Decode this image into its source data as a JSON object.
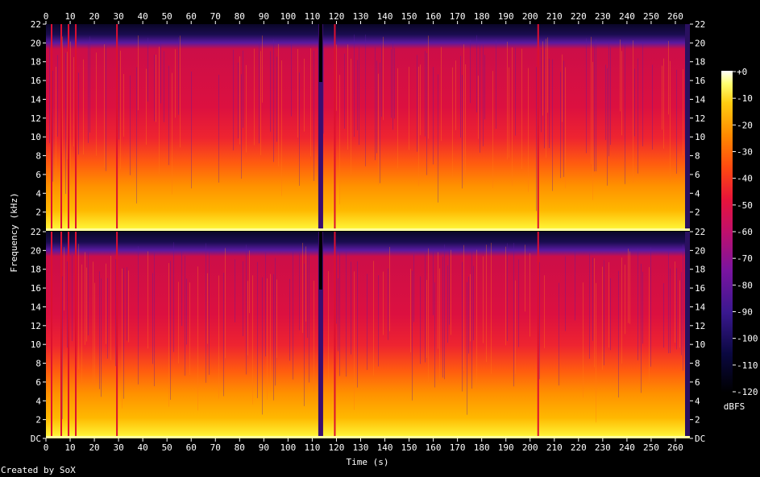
{
  "chart_data": {
    "type": "heatmap",
    "x_axis_title": "Time (s)",
    "y_axis_title": "Frequency (kHz)",
    "x_ticks": [
      0,
      10,
      20,
      30,
      40,
      50,
      60,
      70,
      80,
      90,
      100,
      110,
      120,
      130,
      140,
      150,
      160,
      170,
      180,
      190,
      200,
      210,
      220,
      230,
      240,
      250,
      260
    ],
    "x_range": [
      0,
      266
    ],
    "y_ticks": [
      "DC",
      "2",
      "4",
      "6",
      "8",
      "10",
      "12",
      "14",
      "16",
      "18",
      "20",
      "22"
    ],
    "y_range_khz": [
      0,
      22
    ],
    "channels": 2,
    "colorbar": {
      "label": "dBFS",
      "ticks": [
        "+0",
        "-10",
        "-20",
        "-30",
        "-40",
        "-50",
        "-60",
        "-70",
        "-80",
        "-90",
        "-100",
        "-110",
        "-120"
      ],
      "range": [
        -120,
        0
      ]
    },
    "silent_gaps_s": [
      [
        112.5,
        114.5
      ],
      [
        264,
        266
      ]
    ],
    "bright_vertical_lines_s": [
      2,
      6,
      9,
      12,
      29,
      119,
      203
    ]
  },
  "footer": {
    "created_by": "Created by SoX"
  },
  "colors": {
    "background": "#000000",
    "text": "#ffffff",
    "palette_dark": "#0a0028",
    "palette_purple": "#5a14a0",
    "palette_red": "#dc0f3c",
    "palette_orange": "#ff9a00",
    "palette_yellow": "#ffff32",
    "palette_white": "#ffffff"
  }
}
